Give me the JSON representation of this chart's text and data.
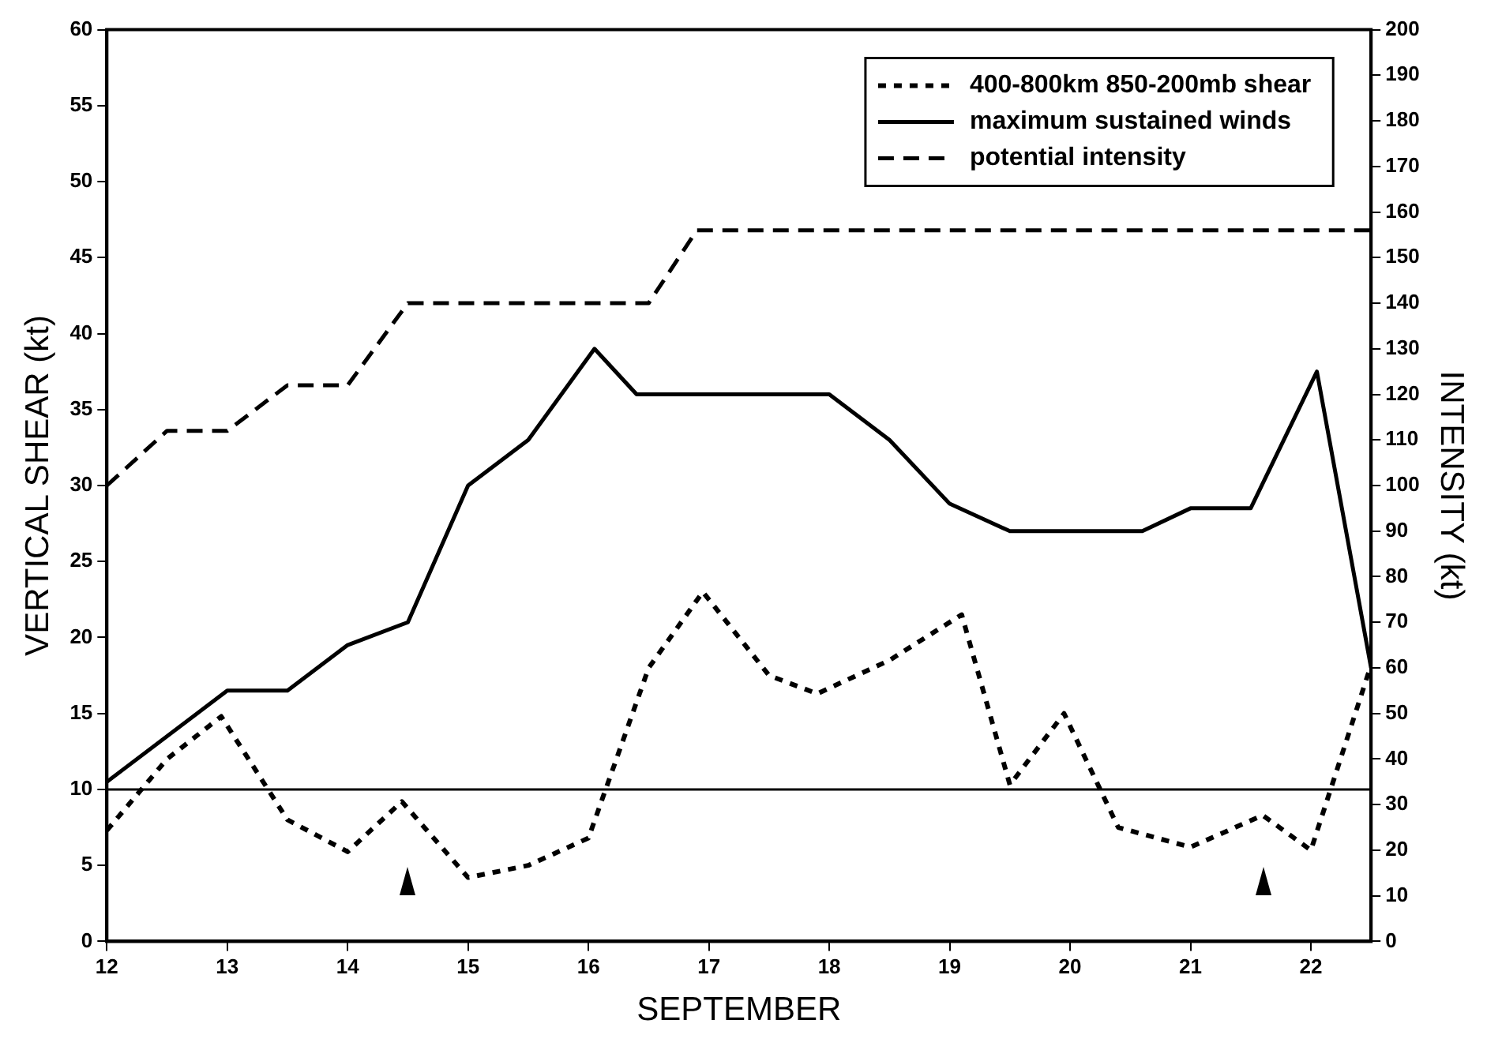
{
  "chart_data": {
    "type": "line",
    "xlabel": "SEPTEMBER",
    "ylabel": "VERTICAL SHEAR (kt)",
    "y2label": "INTENSITY (kt)",
    "xlim": [
      12,
      22.5
    ],
    "xticks": [
      12,
      13,
      14,
      15,
      16,
      17,
      18,
      19,
      20,
      21,
      22
    ],
    "ylim": [
      0,
      60
    ],
    "yticks": [
      0,
      5,
      10,
      15,
      20,
      25,
      30,
      35,
      40,
      45,
      50,
      55,
      60
    ],
    "y2lim": [
      0,
      200
    ],
    "y2ticks": [
      0,
      10,
      20,
      30,
      40,
      50,
      60,
      70,
      80,
      90,
      100,
      110,
      120,
      130,
      140,
      150,
      160,
      170,
      180,
      190,
      200
    ],
    "grid": false,
    "legend": "top right",
    "marker": "none",
    "ref_lines": [
      {
        "axis": "y",
        "value": 10,
        "color": "#000000",
        "line_style": "solid"
      }
    ],
    "series": [
      {
        "name": "400-800km 850-200mb shear",
        "color": "#000000",
        "line_style": "dotted",
        "x": [
          12,
          12.5,
          12.95,
          13.5,
          14,
          14.45,
          15,
          15.5,
          16,
          16.5,
          16.95,
          17.5,
          17.9,
          18.5,
          19.1,
          19.5,
          19.95,
          20.4,
          21,
          21.6,
          22,
          22.5
        ],
        "values": [
          7.3,
          12,
          14.8,
          8,
          5.9,
          9.2,
          4.2,
          5,
          6.8,
          18,
          23,
          17.5,
          16.3,
          18.5,
          21.5,
          10.3,
          15,
          7.5,
          6.2,
          8.3,
          6,
          18.2
        ]
      },
      {
        "name": "maximum sustained winds",
        "color": "#000000",
        "line_style": "solid",
        "axis": "y2",
        "x": [
          12,
          13,
          13.5,
          14,
          14.5,
          15,
          15.5,
          16.05,
          16.4,
          18,
          18.5,
          19,
          19.5,
          20.6,
          21,
          21.5,
          22.05,
          22.5
        ],
        "values": [
          35,
          55,
          55,
          65,
          70,
          100,
          110,
          130,
          120,
          120,
          110,
          96,
          90,
          90,
          95,
          95,
          125,
          60
        ]
      },
      {
        "name": "potential intensity",
        "color": "#000000",
        "line_style": "dashed",
        "axis": "y2",
        "x": [
          12,
          12.5,
          13,
          13.5,
          14,
          14.5,
          16.5,
          16.9,
          22.5
        ],
        "values": [
          100,
          112,
          112,
          122,
          122,
          140,
          140,
          156,
          156
        ]
      }
    ]
  }
}
